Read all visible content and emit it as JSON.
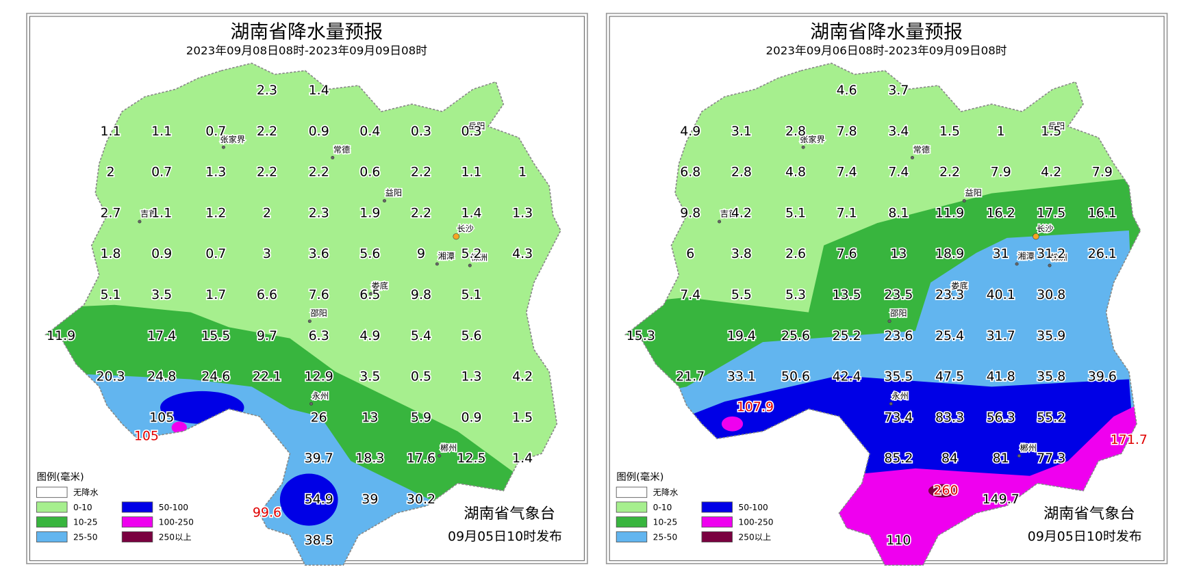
{
  "panels": [
    {
      "title": "湖南省降水量预报",
      "subtitle": "2023年09月08日08时-2023年09月09日08时",
      "grid": [
        [
          null,
          null,
          null,
          null,
          "2.3",
          "1.4",
          null,
          null,
          null,
          null
        ],
        [
          null,
          "1.1",
          "1.1",
          "0.7",
          "2.2",
          "0.9",
          "0.4",
          "0.3",
          "0.3",
          null
        ],
        [
          null,
          "2",
          "0.7",
          "1.3",
          "2.2",
          "2.2",
          "0.6",
          "2.2",
          "1.1",
          "1"
        ],
        [
          null,
          "2.7",
          "1.1",
          "1.2",
          "2",
          "2.3",
          "1.9",
          "2.2",
          "1.4",
          "1.3"
        ],
        [
          null,
          "1.8",
          "0.9",
          "0.7",
          "3",
          "3.6",
          "5.6",
          "9",
          "5.2",
          "4.3"
        ],
        [
          null,
          "5.1",
          "3.5",
          "1.7",
          "6.6",
          "7.6",
          "6.5",
          "9.8",
          "5.1",
          null
        ],
        [
          "11.9",
          null,
          "17.4",
          "15.5",
          "9.7",
          "6.3",
          "4.9",
          "5.4",
          "5.6",
          null
        ],
        [
          null,
          "20.3",
          "24.8",
          "24.6",
          "22.1",
          "12.9",
          "3.5",
          "0.5",
          "1.3",
          "4.2"
        ],
        [
          null,
          null,
          "105",
          null,
          null,
          "26",
          "13",
          "5.9",
          "0.9",
          "1.5"
        ],
        [
          null,
          null,
          null,
          null,
          null,
          "39.7",
          "18.3",
          "17.6",
          "12.5",
          "1.4"
        ],
        [
          null,
          null,
          null,
          null,
          null,
          "54.9",
          "39",
          "30.2",
          null,
          null
        ],
        [
          null,
          null,
          null,
          null,
          null,
          "38.5",
          null,
          null,
          null,
          null
        ]
      ],
      "maxima": [
        "105",
        "99.6"
      ],
      "cities": [
        "张家界",
        "常德",
        "益阳",
        "长沙",
        "湘潭",
        "株洲",
        "娄底",
        "邵阳",
        "永州",
        "郴州",
        "吉首",
        "岳阳"
      ],
      "legend_title": "图例(毫米)",
      "legend": [
        "无降水",
        "0-10",
        "10-25",
        "25-50",
        "50-100",
        "100-250",
        "250以上"
      ],
      "issuer": "湖南省气象台",
      "issued": "09月05日10时发布"
    },
    {
      "title": "湖南省降水量预报",
      "subtitle": "2023年09月06日08时-2023年09月09日08时",
      "grid": [
        [
          null,
          null,
          null,
          null,
          "4.6",
          "3.7",
          null,
          null,
          null,
          null
        ],
        [
          null,
          "4.9",
          "3.1",
          "2.8",
          "7.8",
          "3.4",
          "1.5",
          "1",
          "1.5",
          null
        ],
        [
          null,
          "6.8",
          "2.8",
          "4.8",
          "7.4",
          "7.4",
          "2.2",
          "7.9",
          "4.2",
          "7.9"
        ],
        [
          null,
          "9.8",
          "4.2",
          "5.1",
          "7.1",
          "8.1",
          "11.9",
          "16.2",
          "17.5",
          "16.1"
        ],
        [
          null,
          "6",
          "3.8",
          "2.6",
          "7.6",
          "13",
          "18.9",
          "31",
          "31.2",
          "26.1"
        ],
        [
          null,
          "7.4",
          "5.5",
          "5.3",
          "13.5",
          "23.5",
          "23.3",
          "40.1",
          "30.8",
          null
        ],
        [
          "15.3",
          null,
          "19.4",
          "25.6",
          "25.2",
          "23.6",
          "25.4",
          "31.7",
          "35.9",
          null
        ],
        [
          null,
          "21.7",
          "33.1",
          "50.6",
          "42.4",
          "35.5",
          "47.5",
          "41.8",
          "35.8",
          "39.6"
        ],
        [
          null,
          null,
          null,
          null,
          null,
          "73.4",
          "83.3",
          "56.3",
          "55.2",
          null
        ],
        [
          null,
          null,
          null,
          null,
          null,
          "85.2",
          "84",
          "81",
          "77.3",
          null
        ],
        [
          null,
          null,
          null,
          null,
          null,
          null,
          null,
          "149.7",
          null,
          null
        ],
        [
          null,
          null,
          null,
          null,
          null,
          "110",
          null,
          null,
          null,
          null
        ]
      ],
      "maxima": [
        "107.9",
        "171.7",
        "260"
      ],
      "cities": [
        "张家界",
        "常德",
        "益阳",
        "长沙",
        "湘潭",
        "株洲",
        "娄底",
        "邵阳",
        "永州",
        "郴州",
        "吉首",
        "岳阳"
      ],
      "legend_title": "图例(毫米)",
      "legend": [
        "无降水",
        "0-10",
        "10-25",
        "25-50",
        "50-100",
        "100-250",
        "250以上"
      ],
      "issuer": "湖南省气象台",
      "issued": "09月05日10时发布"
    }
  ]
}
